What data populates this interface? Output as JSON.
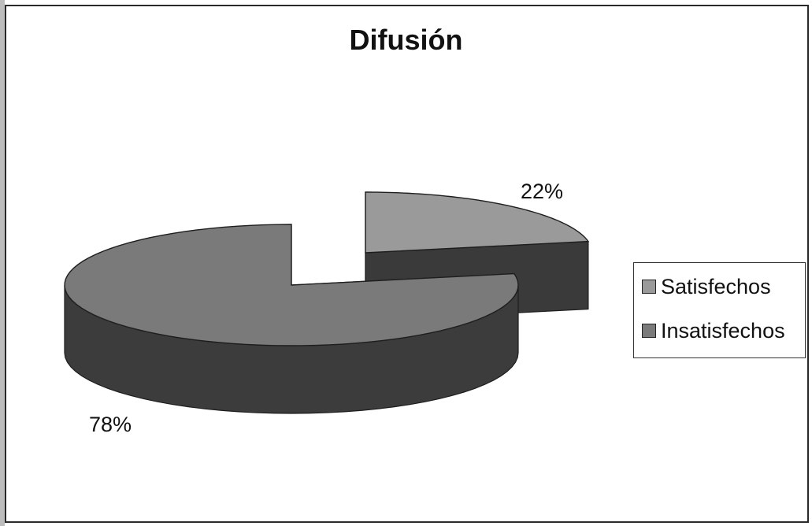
{
  "chart_data": {
    "type": "pie",
    "style": "3d-exploded",
    "title": "Difusión",
    "slices": [
      {
        "label": "Satisfechos",
        "value": 22,
        "display": "22%",
        "color": "#9a9a9a",
        "side_color": "#3a3a3a"
      },
      {
        "label": "Insatisfechos",
        "value": 78,
        "display": "78%",
        "color": "#7a7a7a",
        "side_color": "#3c3c3c"
      }
    ],
    "legend": {
      "position": "right"
    }
  }
}
